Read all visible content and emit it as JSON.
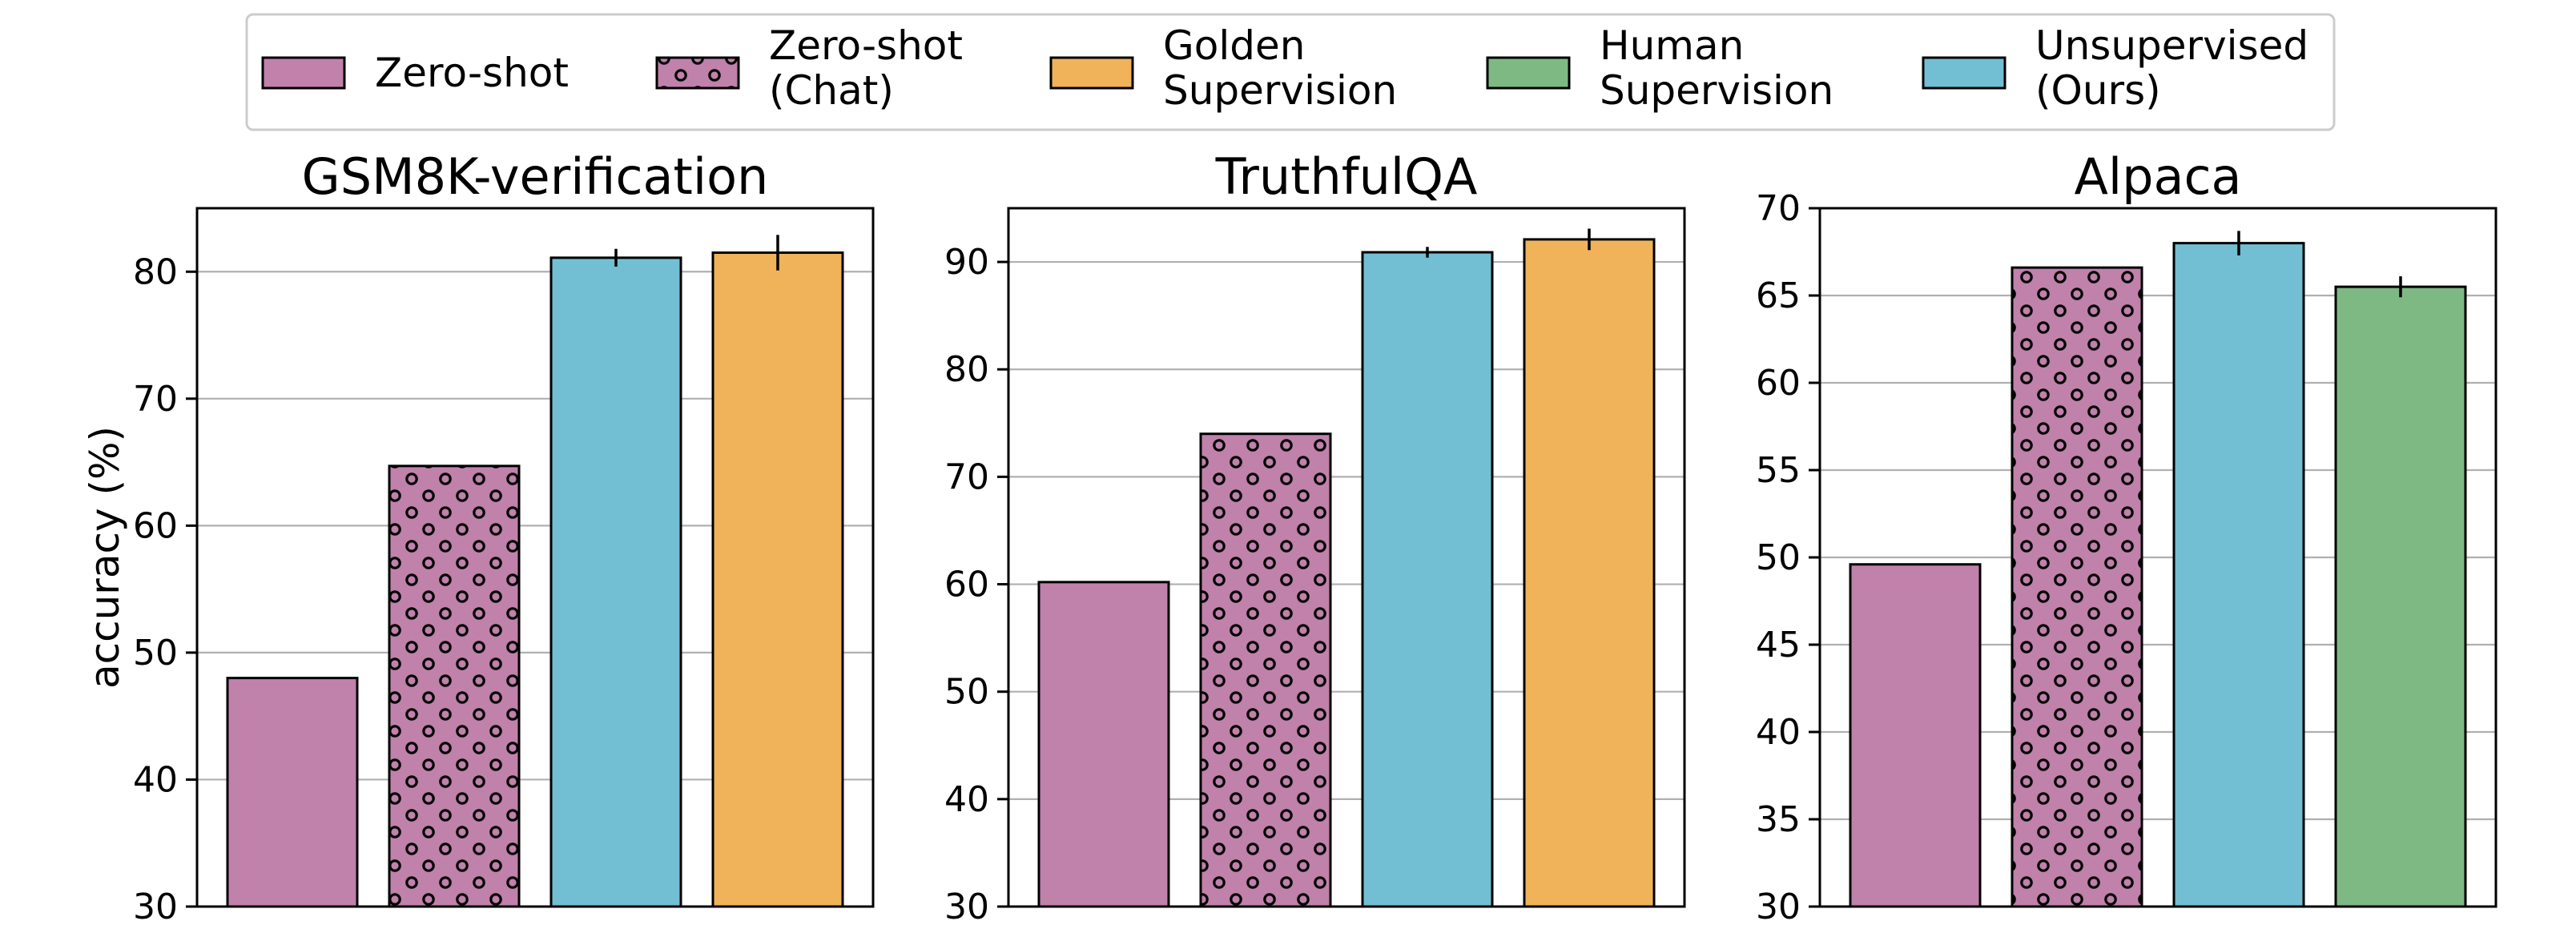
{
  "colors": {
    "zero_shot": "#c081aa",
    "zero_shot_chat": "#c081aa",
    "golden": "#f0b35a",
    "human": "#7eb984",
    "unsupervised": "#72bfd3"
  },
  "legend": {
    "items": [
      {
        "key": "zero_shot",
        "lines": [
          "Zero-shot"
        ],
        "hatch": false
      },
      {
        "key": "zero_shot_chat",
        "lines": [
          "Zero-shot",
          "(Chat)"
        ],
        "hatch": true
      },
      {
        "key": "golden",
        "lines": [
          "Golden",
          "Supervision"
        ],
        "hatch": false
      },
      {
        "key": "human",
        "lines": [
          "Human",
          "Supervision"
        ],
        "hatch": false
      },
      {
        "key": "unsupervised",
        "lines": [
          "Unsupervised",
          "(Ours)"
        ],
        "hatch": false
      }
    ]
  },
  "chart_data": [
    {
      "type": "bar",
      "title": "GSM8K-verification",
      "ylabel": "accuracy (%)",
      "ylim": [
        30,
        85
      ],
      "yticks": [
        30,
        40,
        50,
        60,
        70,
        80
      ],
      "grid": true,
      "bars": [
        {
          "series": "Zero-shot",
          "key": "zero_shot",
          "value": 48.0,
          "hatch": false,
          "err": 0
        },
        {
          "series": "Zero-shot (Chat)",
          "key": "zero_shot_chat",
          "value": 64.7,
          "hatch": true,
          "err": 0
        },
        {
          "series": "Unsupervised (Ours)",
          "key": "unsupervised",
          "value": 81.1,
          "hatch": false,
          "err": 0.7
        },
        {
          "series": "Golden Supervision",
          "key": "golden",
          "value": 81.5,
          "hatch": false,
          "err": 1.4
        }
      ]
    },
    {
      "type": "bar",
      "title": "TruthfulQA",
      "ylabel": "",
      "ylim": [
        30,
        95
      ],
      "yticks": [
        30,
        40,
        50,
        60,
        70,
        80,
        90
      ],
      "grid": true,
      "bars": [
        {
          "series": "Zero-shot",
          "key": "zero_shot",
          "value": 60.2,
          "hatch": false,
          "err": 0
        },
        {
          "series": "Zero-shot (Chat)",
          "key": "zero_shot_chat",
          "value": 74.0,
          "hatch": true,
          "err": 0
        },
        {
          "series": "Unsupervised (Ours)",
          "key": "unsupervised",
          "value": 90.9,
          "hatch": false,
          "err": 0.5
        },
        {
          "series": "Golden Supervision",
          "key": "golden",
          "value": 92.1,
          "hatch": false,
          "err": 1.0
        }
      ]
    },
    {
      "type": "bar",
      "title": "Alpaca",
      "ylabel": "",
      "ylim": [
        30,
        70
      ],
      "yticks": [
        30,
        35,
        40,
        45,
        50,
        55,
        60,
        65,
        70
      ],
      "grid": true,
      "bars": [
        {
          "series": "Zero-shot",
          "key": "zero_shot",
          "value": 49.6,
          "hatch": false,
          "err": 0
        },
        {
          "series": "Zero-shot (Chat)",
          "key": "zero_shot_chat",
          "value": 66.6,
          "hatch": true,
          "err": 0
        },
        {
          "series": "Unsupervised (Ours)",
          "key": "unsupervised",
          "value": 68.0,
          "hatch": false,
          "err": 0.7
        },
        {
          "series": "Human Supervision",
          "key": "human",
          "value": 65.5,
          "hatch": false,
          "err": 0.6
        }
      ]
    }
  ]
}
